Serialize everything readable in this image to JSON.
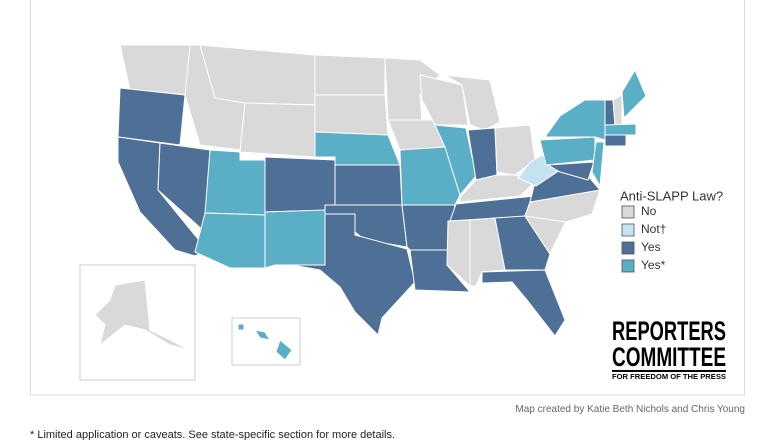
{
  "legend": {
    "title": "Anti-SLAPP Law?",
    "items": [
      {
        "label": "No",
        "color": "#d9d9d9"
      },
      {
        "label": "Not†",
        "color": "#c6e2f0"
      },
      {
        "label": "Yes",
        "color": "#4e6f96"
      },
      {
        "label": "Yes*",
        "color": "#5aaec5"
      }
    ]
  },
  "logo": {
    "line1": "REPORTERS",
    "line2": "COMMITTEE",
    "tagline": "FOR FREEDOM OF THE PRESS"
  },
  "credit": "Map created by Katie Beth Nichols and Chris Young",
  "footnote": "* Limited application or caveats. See state-specific section for more details."
}
